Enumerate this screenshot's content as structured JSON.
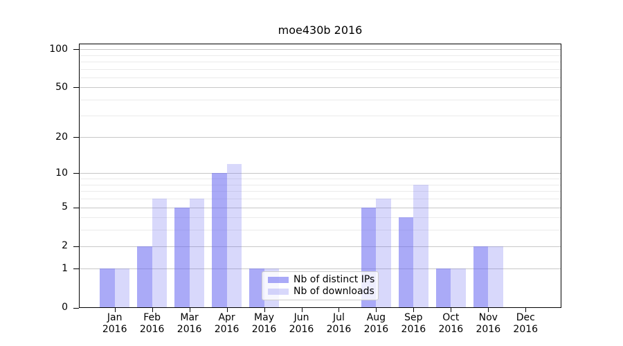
{
  "chart_data": {
    "type": "bar",
    "title": "moe430b 2016",
    "categories": [
      "Jan 2016",
      "Feb 2016",
      "Mar 2016",
      "Apr 2016",
      "May 2016",
      "Jun 2016",
      "Jul 2016",
      "Aug 2016",
      "Sep 2016",
      "Oct 2016",
      "Nov 2016",
      "Dec 2016"
    ],
    "series": [
      {
        "name": "Nb of distinct IPs",
        "color": "#6464f08c",
        "values": [
          1,
          2,
          5,
          10,
          1,
          0,
          0,
          5,
          4,
          1,
          2,
          0
        ]
      },
      {
        "name": "Nb of downloads",
        "color": "#6464f040",
        "values": [
          1,
          6,
          6,
          12,
          1,
          0,
          0,
          6,
          8,
          1,
          2,
          0
        ]
      }
    ],
    "yscale": "log1p",
    "ylim": [
      0,
      110
    ],
    "y_major_ticks": [
      0,
      1,
      2,
      5,
      10,
      20,
      50,
      100
    ],
    "y_minor_ticks": [
      3,
      4,
      6,
      7,
      8,
      9,
      30,
      40,
      60,
      70,
      80,
      90
    ],
    "grid": true,
    "grid_major_color": "#c7c7c7",
    "grid_minor_color": "#ebebeb",
    "legend_position": "lower center"
  }
}
